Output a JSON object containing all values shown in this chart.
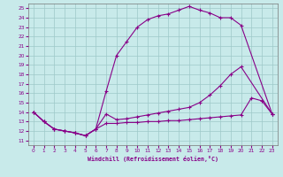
{
  "bg_color": "#c8eaea",
  "grid_color": "#9ec8c8",
  "line_color": "#880088",
  "xlabel": "Windchill (Refroidissement éolien,°C)",
  "xlim": [
    -0.5,
    23.5
  ],
  "ylim": [
    10.5,
    25.5
  ],
  "xticks": [
    0,
    1,
    2,
    3,
    4,
    5,
    6,
    7,
    8,
    9,
    10,
    11,
    12,
    13,
    14,
    15,
    16,
    17,
    18,
    19,
    20,
    21,
    22,
    23
  ],
  "yticks": [
    11,
    12,
    13,
    14,
    15,
    16,
    17,
    18,
    19,
    20,
    21,
    22,
    23,
    24,
    25
  ],
  "upper_x": [
    0,
    1,
    2,
    3,
    4,
    5,
    6,
    7,
    8,
    9,
    10,
    11,
    12,
    13,
    14,
    15,
    16,
    17,
    18,
    19,
    20,
    23
  ],
  "upper_y": [
    14,
    13,
    12.2,
    12.0,
    11.8,
    11.5,
    12.2,
    16.2,
    20.0,
    21.5,
    23.0,
    23.8,
    24.2,
    24.4,
    24.8,
    25.2,
    24.8,
    24.5,
    24.0,
    24.0,
    23.2,
    13.8
  ],
  "mid_x": [
    0,
    1,
    2,
    3,
    4,
    5,
    6,
    7,
    8,
    9,
    10,
    11,
    12,
    13,
    14,
    15,
    16,
    17,
    18,
    19,
    20,
    23
  ],
  "mid_y": [
    14,
    13,
    12.2,
    12.0,
    11.8,
    11.5,
    12.2,
    13.8,
    13.2,
    13.3,
    13.5,
    13.7,
    13.9,
    14.1,
    14.3,
    14.5,
    15.0,
    15.8,
    16.8,
    18.0,
    18.8,
    13.8
  ],
  "lower_x": [
    0,
    1,
    2,
    3,
    4,
    5,
    6,
    7,
    8,
    9,
    10,
    11,
    12,
    13,
    14,
    15,
    16,
    17,
    18,
    19,
    20,
    21,
    22,
    23
  ],
  "lower_y": [
    14,
    13,
    12.2,
    12.0,
    11.8,
    11.5,
    12.2,
    12.8,
    12.8,
    12.9,
    12.9,
    13.0,
    13.0,
    13.1,
    13.1,
    13.2,
    13.3,
    13.4,
    13.5,
    13.6,
    13.7,
    15.5,
    15.2,
    13.8
  ]
}
